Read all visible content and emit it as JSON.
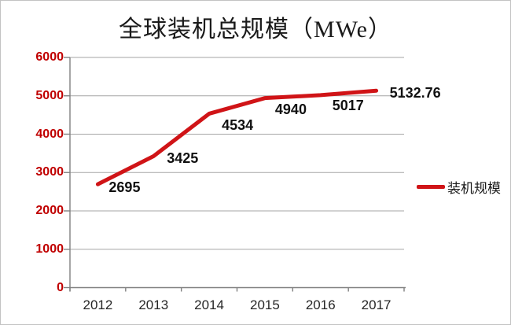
{
  "chart_data": {
    "type": "line",
    "title": "全球装机总规模（MWe）",
    "categories": [
      "2012",
      "2013",
      "2014",
      "2015",
      "2016",
      "2017"
    ],
    "series": [
      {
        "name": "装机规模",
        "values": [
          2695,
          3425,
          4534,
          4940,
          5017,
          5132.76
        ]
      }
    ],
    "data_labels": [
      "2695",
      "3425",
      "4534",
      "4940",
      "5017",
      "5132.76"
    ],
    "xlabel": "",
    "ylabel": "",
    "ylim": [
      0,
      6000
    ],
    "ytick_step": 1000,
    "yticks": [
      "0",
      "1000",
      "2000",
      "3000",
      "4000",
      "5000",
      "6000"
    ],
    "grid": true,
    "legend": {
      "position": "right",
      "entries": [
        "装机规模"
      ]
    },
    "colors": {
      "series_line": "#d01417",
      "ytick_label": "#c00000",
      "xtick_label": "#262626",
      "data_label": "#111111",
      "gridline": "#a6a6a6",
      "axis": "#808080",
      "background": "#ffffff",
      "frame_border": "#c3c3c3"
    }
  }
}
